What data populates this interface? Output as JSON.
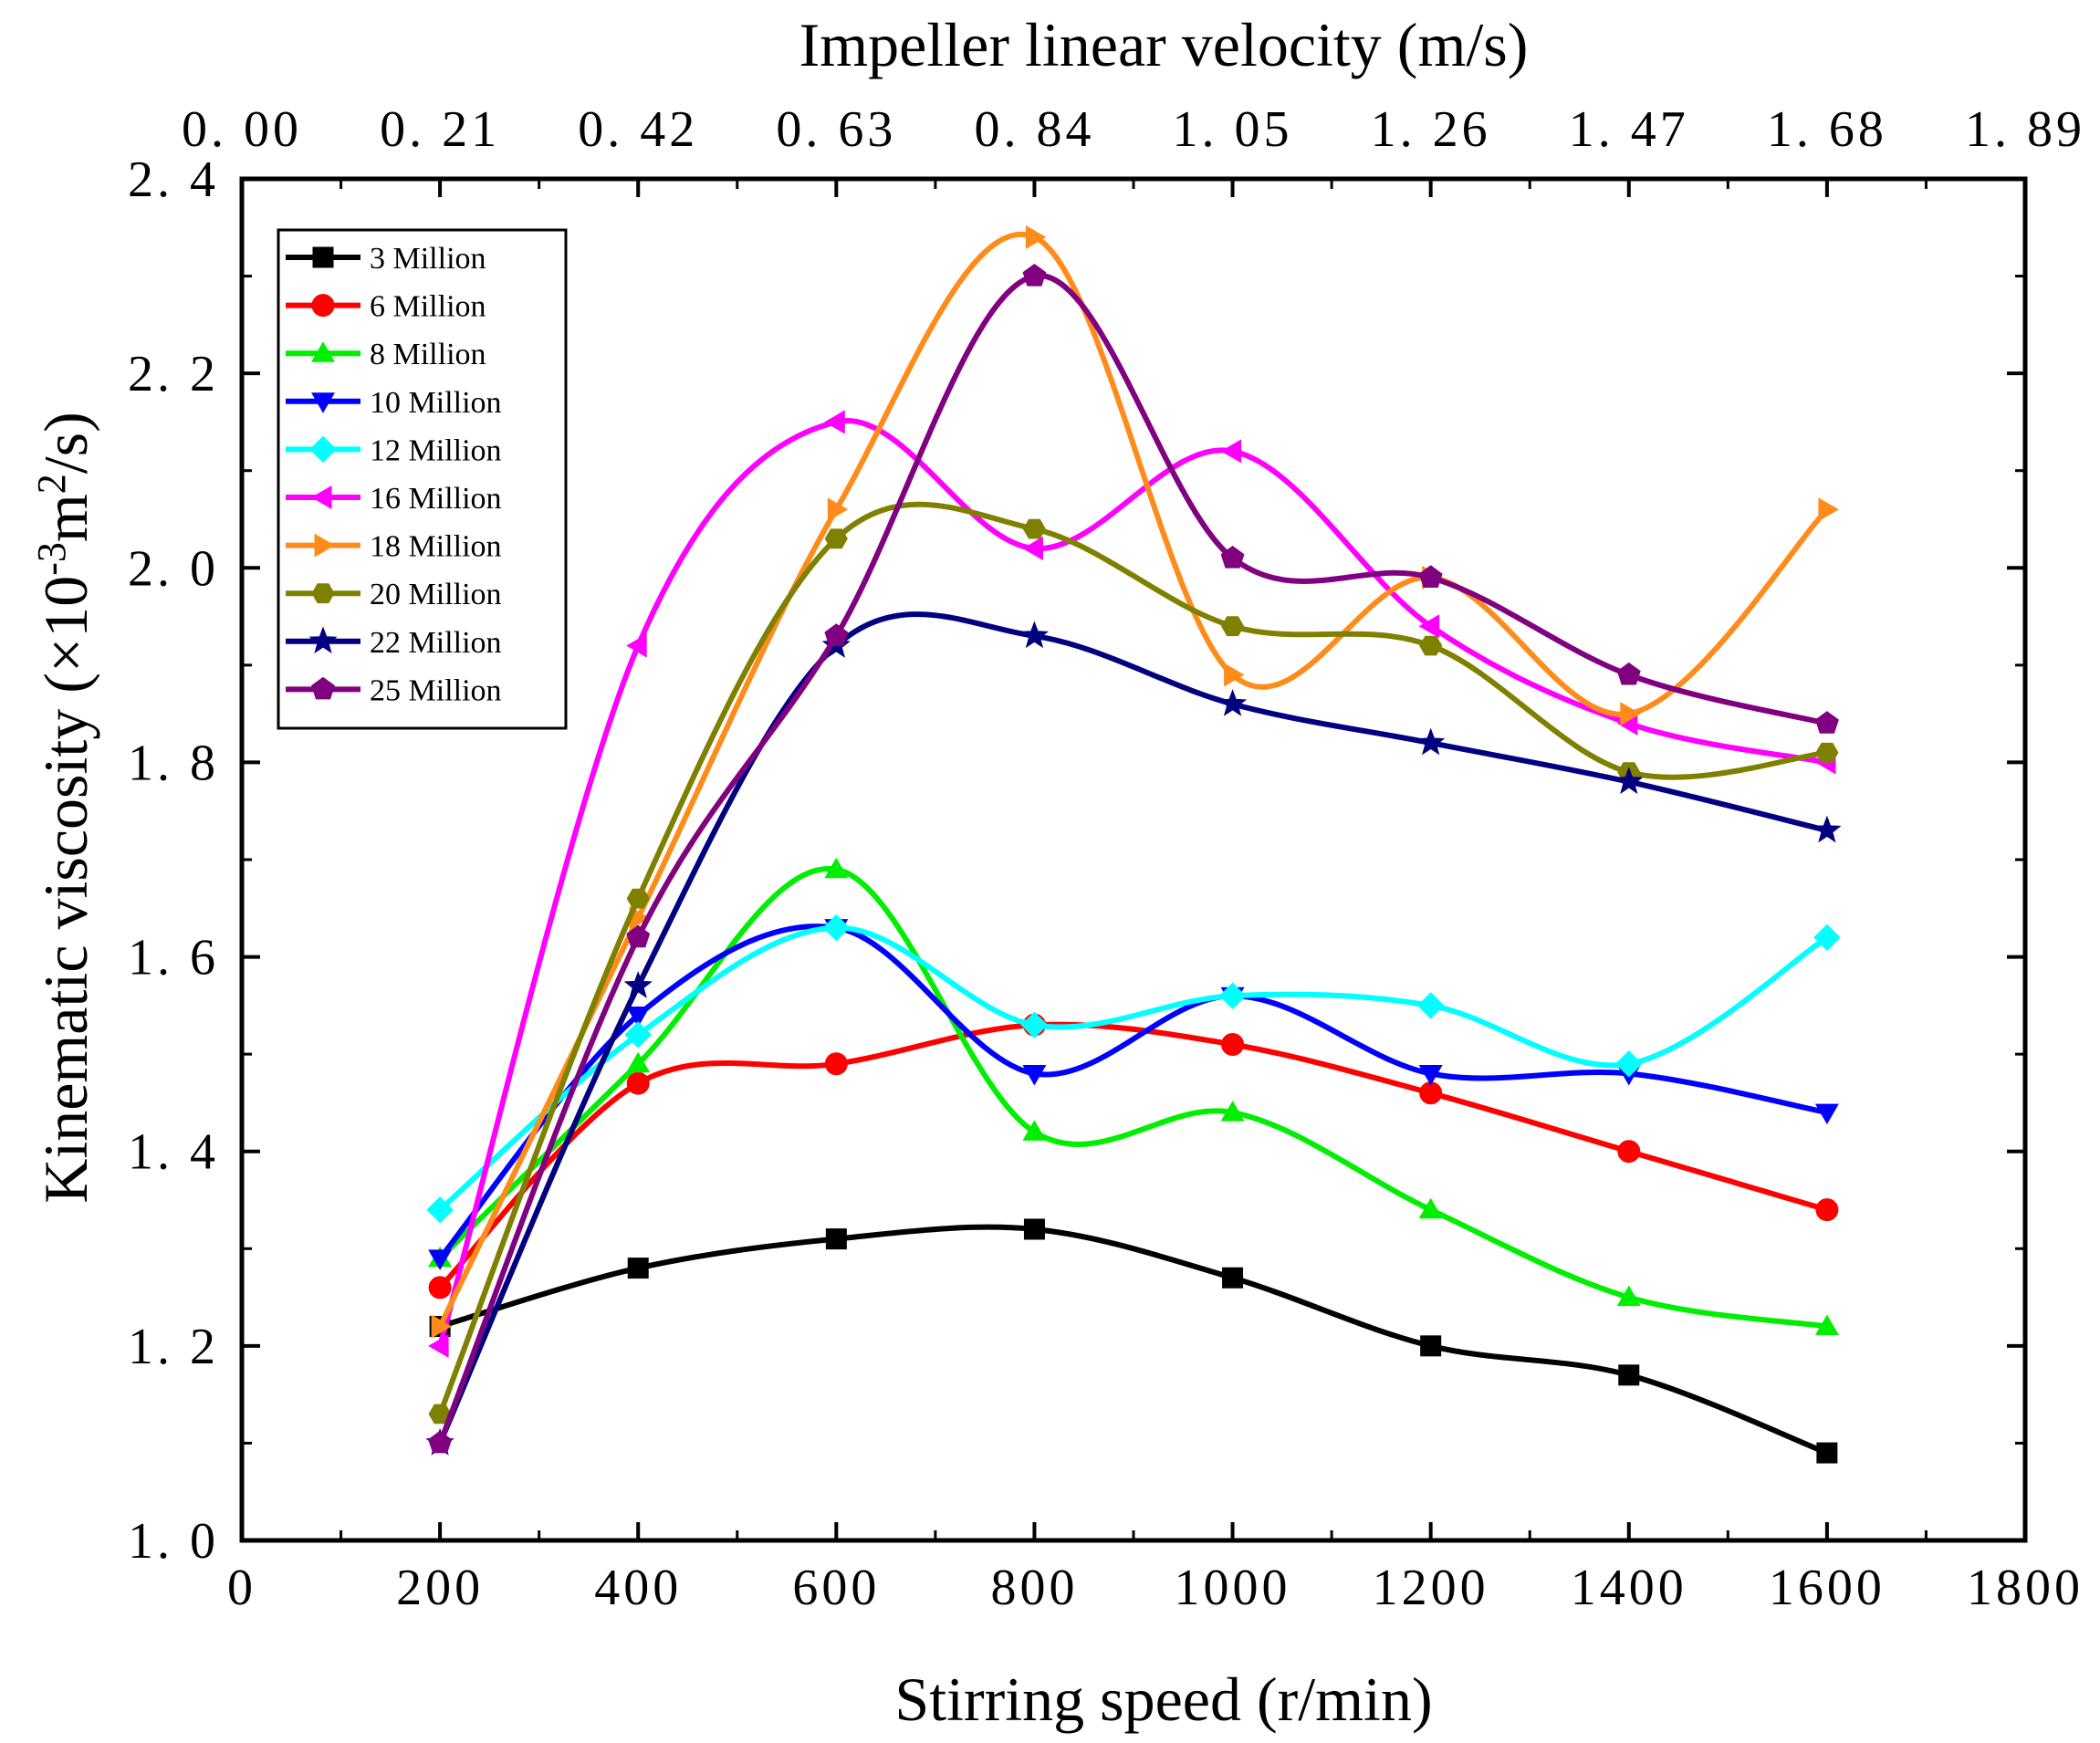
{
  "chart_data": {
    "type": "line",
    "title": "",
    "xlabel": "Stirring speed (r/min)",
    "ylabel": "Kinematic viscosity (×10",
    "ylabel_sup": "-3",
    "ylabel_mid": "m",
    "ylabel_sup2": "2",
    "ylabel_end": "/s)",
    "x2label": "Impeller linear velocity (m/s)",
    "xlim": [
      0,
      1800
    ],
    "ylim": [
      1.0,
      2.4
    ],
    "xticks": [
      0,
      200,
      400,
      600,
      800,
      1000,
      1200,
      1400,
      1600,
      1800
    ],
    "xtick_labels": [
      "0",
      "200",
      "400",
      "600",
      "800",
      "1000",
      "1200",
      "1400",
      "1600",
      "1800"
    ],
    "yticks": [
      1.0,
      1.2,
      1.4,
      1.6,
      1.8,
      2.0,
      2.2,
      2.4
    ],
    "ytick_labels": [
      "1. 0",
      "1. 2",
      "1. 4",
      "1. 6",
      "1. 8",
      "2. 0",
      "2. 2",
      "2. 4"
    ],
    "x2_tick_labels": [
      "0. 00",
      "0. 21",
      "0. 42",
      "0. 63",
      "0. 84",
      "1. 05",
      "1. 26",
      "1. 47",
      "1. 68",
      "1. 89"
    ],
    "legend_position": "top-left",
    "x": [
      200,
      400,
      600,
      800,
      1000,
      1200,
      1400,
      1600
    ],
    "series": [
      {
        "name": "3 Million",
        "color": "#000000",
        "marker": "square",
        "values": [
          1.22,
          1.28,
          1.31,
          1.32,
          1.27,
          1.2,
          1.17,
          1.09
        ]
      },
      {
        "name": "6 Million",
        "color": "#ff0000",
        "marker": "circle",
        "values": [
          1.26,
          1.47,
          1.49,
          1.53,
          1.51,
          1.46,
          1.4,
          1.34
        ]
      },
      {
        "name": "8 Million",
        "color": "#00ee00",
        "marker": "triangle-up",
        "values": [
          1.29,
          1.49,
          1.69,
          1.42,
          1.44,
          1.34,
          1.25,
          1.22
        ]
      },
      {
        "name": "10 Million",
        "color": "#0000ff",
        "marker": "triangle-down",
        "values": [
          1.29,
          1.54,
          1.63,
          1.48,
          1.56,
          1.48,
          1.48,
          1.44
        ]
      },
      {
        "name": "12 Million",
        "color": "#00ffff",
        "marker": "diamond",
        "values": [
          1.34,
          1.52,
          1.63,
          1.53,
          1.56,
          1.55,
          1.49,
          1.62
        ]
      },
      {
        "name": "16 Million",
        "color": "#ff00ff",
        "marker": "triangle-left",
        "values": [
          1.2,
          1.92,
          2.15,
          2.02,
          2.12,
          1.94,
          1.84,
          1.8
        ]
      },
      {
        "name": "18 Million",
        "color": "#ff8c1a",
        "marker": "triangle-right",
        "values": [
          1.22,
          1.64,
          2.06,
          2.34,
          1.89,
          1.99,
          1.85,
          2.06
        ]
      },
      {
        "name": "20 Million",
        "color": "#808000",
        "marker": "hexagon",
        "values": [
          1.13,
          1.66,
          2.03,
          2.04,
          1.94,
          1.92,
          1.79,
          1.81
        ]
      },
      {
        "name": "22 Million",
        "color": "#000080",
        "marker": "star",
        "values": [
          1.1,
          1.57,
          1.92,
          1.93,
          1.86,
          1.82,
          1.78,
          1.73
        ]
      },
      {
        "name": "25 Million",
        "color": "#800080",
        "marker": "pentagon",
        "values": [
          1.1,
          1.62,
          1.93,
          2.3,
          2.01,
          1.99,
          1.89,
          1.84
        ]
      }
    ]
  }
}
